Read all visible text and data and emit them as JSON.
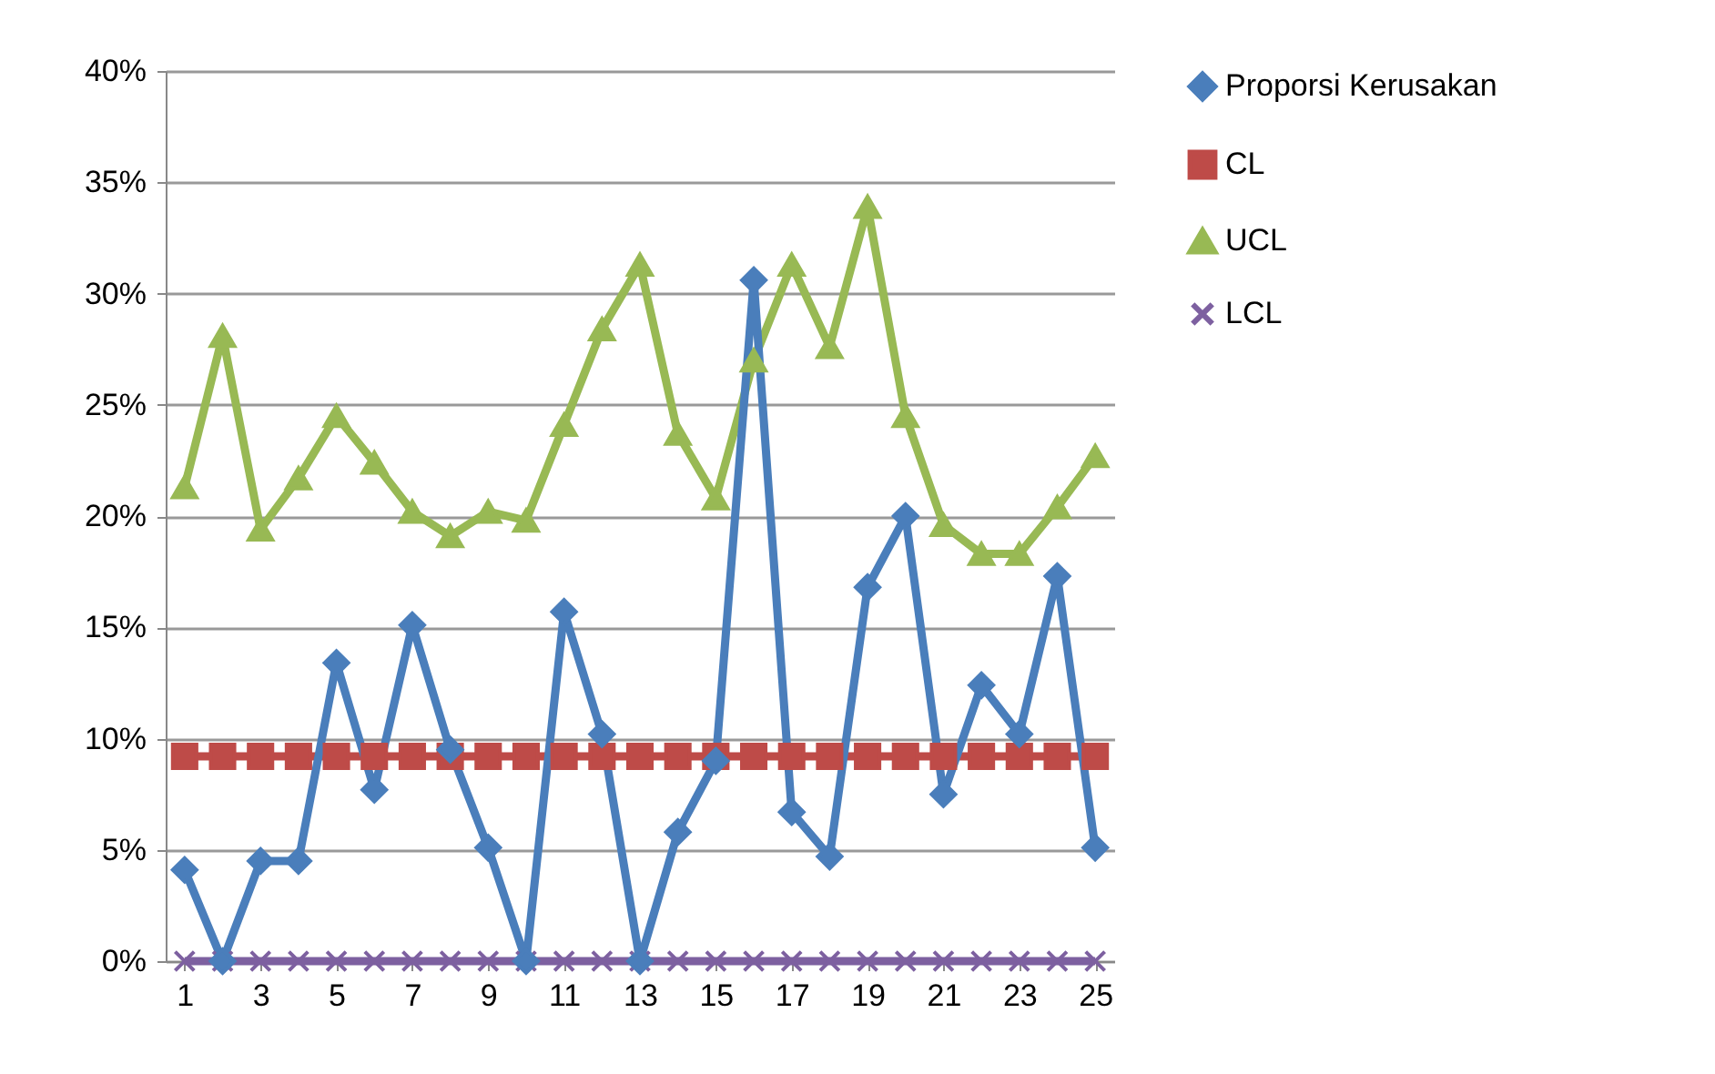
{
  "chart_data": {
    "type": "line",
    "x": [
      1,
      2,
      3,
      4,
      5,
      6,
      7,
      8,
      9,
      10,
      11,
      12,
      13,
      14,
      15,
      16,
      17,
      18,
      19,
      20,
      21,
      22,
      23,
      24,
      25
    ],
    "xlim": [
      0.5,
      25.5
    ],
    "xticks": [
      1,
      3,
      5,
      7,
      9,
      11,
      13,
      15,
      17,
      19,
      21,
      23,
      25
    ],
    "ylim": [
      0,
      40
    ],
    "yticks": [
      {
        "value": 0,
        "label": "0%"
      },
      {
        "value": 5,
        "label": "5%"
      },
      {
        "value": 10,
        "label": "10%"
      },
      {
        "value": 15,
        "label": "15%"
      },
      {
        "value": 20,
        "label": "20%"
      },
      {
        "value": 25,
        "label": "25%"
      },
      {
        "value": 30,
        "label": "30%"
      },
      {
        "value": 35,
        "label": "35%"
      },
      {
        "value": 40,
        "label": "40%"
      }
    ],
    "grid": "y",
    "legend": "right",
    "series": [
      {
        "name": "Proporsi Kerusakan",
        "color": "#4a7ebb",
        "marker": "diamond",
        "values": [
          4.1,
          0,
          4.5,
          4.5,
          13.4,
          7.7,
          15.1,
          9.5,
          5.1,
          0,
          15.7,
          10.2,
          0,
          5.8,
          9.0,
          30.6,
          6.7,
          4.7,
          16.8,
          20.0,
          7.5,
          12.4,
          10.2,
          17.3,
          5.1
        ]
      },
      {
        "name": "CL",
        "color": "#be4b48",
        "marker": "square",
        "values": [
          9.2,
          9.2,
          9.2,
          9.2,
          9.2,
          9.2,
          9.2,
          9.2,
          9.2,
          9.2,
          9.2,
          9.2,
          9.2,
          9.2,
          9.2,
          9.2,
          9.2,
          9.2,
          9.2,
          9.2,
          9.2,
          9.2,
          9.2,
          9.2,
          9.2
        ]
      },
      {
        "name": "UCL",
        "color": "#98b954",
        "marker": "triangle",
        "values": [
          21.3,
          28.1,
          19.4,
          21.7,
          24.5,
          22.4,
          20.2,
          19.1,
          20.2,
          19.8,
          24.1,
          28.4,
          31.3,
          23.7,
          20.8,
          27.0,
          31.3,
          27.6,
          33.9,
          24.5,
          19.6,
          18.3,
          18.3,
          20.4,
          22.7
        ]
      },
      {
        "name": "LCL",
        "color": "#7d60a0",
        "marker": "cross",
        "values": [
          0,
          0,
          0,
          0,
          0,
          0,
          0,
          0,
          0,
          0,
          0,
          0,
          0,
          0,
          0,
          0,
          0,
          0,
          0,
          0,
          0,
          0,
          0,
          0,
          0
        ]
      }
    ]
  }
}
